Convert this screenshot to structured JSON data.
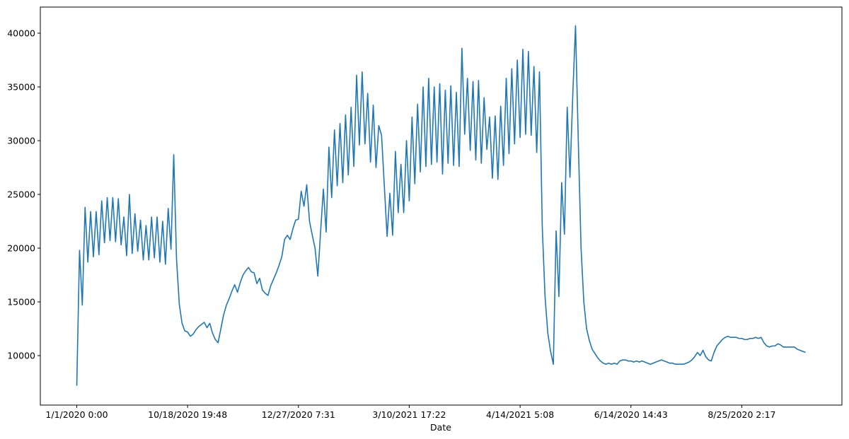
{
  "chart_data": {
    "type": "line",
    "x_label": "Date",
    "categories": [
      "1/1/2020 0:00",
      null,
      null,
      null,
      null,
      null,
      null,
      null,
      null,
      null,
      null,
      null,
      null,
      null,
      null,
      null,
      null,
      null,
      null,
      null,
      null,
      null,
      null,
      null,
      null,
      null,
      null,
      null,
      null,
      null,
      null,
      null,
      null,
      null,
      null,
      null,
      null,
      null,
      null,
      null,
      "10/18/2020 19:48",
      null,
      null,
      null,
      null,
      null,
      null,
      null,
      null,
      null,
      null,
      null,
      null,
      null,
      null,
      null,
      null,
      null,
      null,
      null,
      null,
      null,
      null,
      null,
      null,
      null,
      null,
      null,
      null,
      null,
      null,
      null,
      null,
      null,
      null,
      null,
      null,
      null,
      null,
      null,
      "12/27/2020 7:31",
      null,
      null,
      null,
      null,
      null,
      null,
      null,
      null,
      null,
      null,
      null,
      null,
      null,
      null,
      null,
      null,
      null,
      null,
      null,
      null,
      null,
      null,
      null,
      null,
      null,
      null,
      null,
      null,
      null,
      null,
      null,
      null,
      null,
      null,
      null,
      null,
      null,
      null,
      null,
      "3/10/2021 17:22",
      null,
      null,
      null,
      null,
      null,
      null,
      null,
      null,
      null,
      null,
      null,
      null,
      null,
      null,
      null,
      null,
      null,
      null,
      null,
      null,
      null,
      null,
      null,
      null,
      null,
      null,
      null,
      null,
      null,
      null,
      null,
      null,
      null,
      null,
      null,
      null,
      null,
      null,
      null,
      "4/14/2021 5:08",
      null,
      null,
      null,
      null,
      null,
      null,
      null,
      null,
      null,
      null,
      null,
      null,
      null,
      null,
      null,
      null,
      null,
      null,
      null,
      null,
      null,
      null,
      null,
      null,
      null,
      null,
      null,
      null,
      null,
      null,
      null,
      null,
      null,
      null,
      null,
      null,
      null,
      null,
      null,
      "6/14/2020 14:43",
      null,
      null,
      null,
      null,
      null,
      null,
      null,
      null,
      null,
      null,
      null,
      null,
      null,
      null,
      null,
      null,
      null,
      null,
      null,
      null,
      null,
      null,
      null,
      null,
      null,
      null,
      null,
      null,
      null,
      null,
      null,
      null,
      null,
      null,
      null,
      null,
      null,
      null,
      null,
      "8/25/2020 2:17",
      null,
      null,
      null,
      null,
      null,
      null,
      null,
      null,
      null,
      null,
      null,
      null,
      null,
      null,
      null,
      null,
      null,
      null,
      null,
      null,
      null,
      null,
      null
    ],
    "series": [
      {
        "color": "#1f77b4",
        "values": [
          7200,
          19800,
          14700,
          23800,
          18700,
          23400,
          19200,
          23400,
          19400,
          24400,
          20500,
          24700,
          20700,
          24700,
          20600,
          24600,
          20300,
          22900,
          19300,
          25000,
          19500,
          23200,
          19700,
          22600,
          18900,
          22100,
          18900,
          22900,
          19100,
          22900,
          18700,
          22500,
          18500,
          23700,
          19900,
          28700,
          19000,
          14800,
          13000,
          12300,
          12200,
          11800,
          12000,
          12400,
          12700,
          12900,
          13100,
          12600,
          13000,
          12100,
          11500,
          11200,
          12500,
          13800,
          14700,
          15300,
          16000,
          16600,
          15900,
          16800,
          17500,
          17900,
          18200,
          17800,
          17700,
          16700,
          17200,
          16100,
          15800,
          15600,
          16500,
          17100,
          17700,
          18400,
          19200,
          20800,
          21200,
          20800,
          21800,
          22600,
          22700,
          25300,
          23900,
          25900,
          22500,
          21200,
          20000,
          17400,
          21500,
          25500,
          21500,
          29400,
          24700,
          31000,
          25800,
          31600,
          26100,
          32400,
          26800,
          33100,
          27600,
          36100,
          29600,
          36400,
          29700,
          34400,
          28000,
          33300,
          27500,
          31400,
          30500,
          25800,
          21100,
          25100,
          21200,
          29000,
          23300,
          27800,
          23300,
          30000,
          24400,
          32200,
          26000,
          33400,
          27100,
          35000,
          27600,
          35800,
          27800,
          35000,
          28000,
          35300,
          26900,
          34700,
          27900,
          35100,
          27700,
          34500,
          27600,
          38600,
          30600,
          35800,
          29100,
          35500,
          28200,
          35600,
          27900,
          34000,
          29200,
          32200,
          26500,
          32300,
          26400,
          33200,
          27700,
          35800,
          28800,
          36700,
          29700,
          37500,
          30300,
          38500,
          30600,
          38300,
          30500,
          36900,
          28900,
          36400,
          22000,
          15500,
          12100,
          10400,
          9200,
          21600,
          15500,
          26100,
          21300,
          33100,
          26600,
          34200,
          40700,
          30000,
          20000,
          15000,
          12500,
          11400,
          10600,
          10200,
          9800,
          9500,
          9300,
          9200,
          9300,
          9200,
          9300,
          9200,
          9500,
          9600,
          9600,
          9500,
          9500,
          9400,
          9500,
          9400,
          9500,
          9400,
          9300,
          9200,
          9300,
          9400,
          9500,
          9600,
          9500,
          9400,
          9300,
          9300,
          9200,
          9200,
          9200,
          9200,
          9300,
          9400,
          9600,
          9900,
          10300,
          10000,
          10500,
          9900,
          9600,
          9500,
          10300,
          10900,
          11200,
          11500,
          11700,
          11800,
          11700,
          11700,
          11700,
          11600,
          11600,
          11500,
          11500,
          11600,
          11600,
          11700,
          11600,
          11700,
          11200,
          10900,
          10800,
          10900,
          10900,
          11100,
          11000,
          10800,
          10800,
          10800,
          10800,
          10800,
          10600,
          10500,
          10400,
          10300
        ]
      }
    ],
    "xlim": [
      -13.15,
      276.15
    ],
    "ylim": [
      5400,
      42430
    ],
    "yticks": [
      10000,
      15000,
      20000,
      25000,
      30000,
      35000,
      40000
    ],
    "grid": false
  }
}
